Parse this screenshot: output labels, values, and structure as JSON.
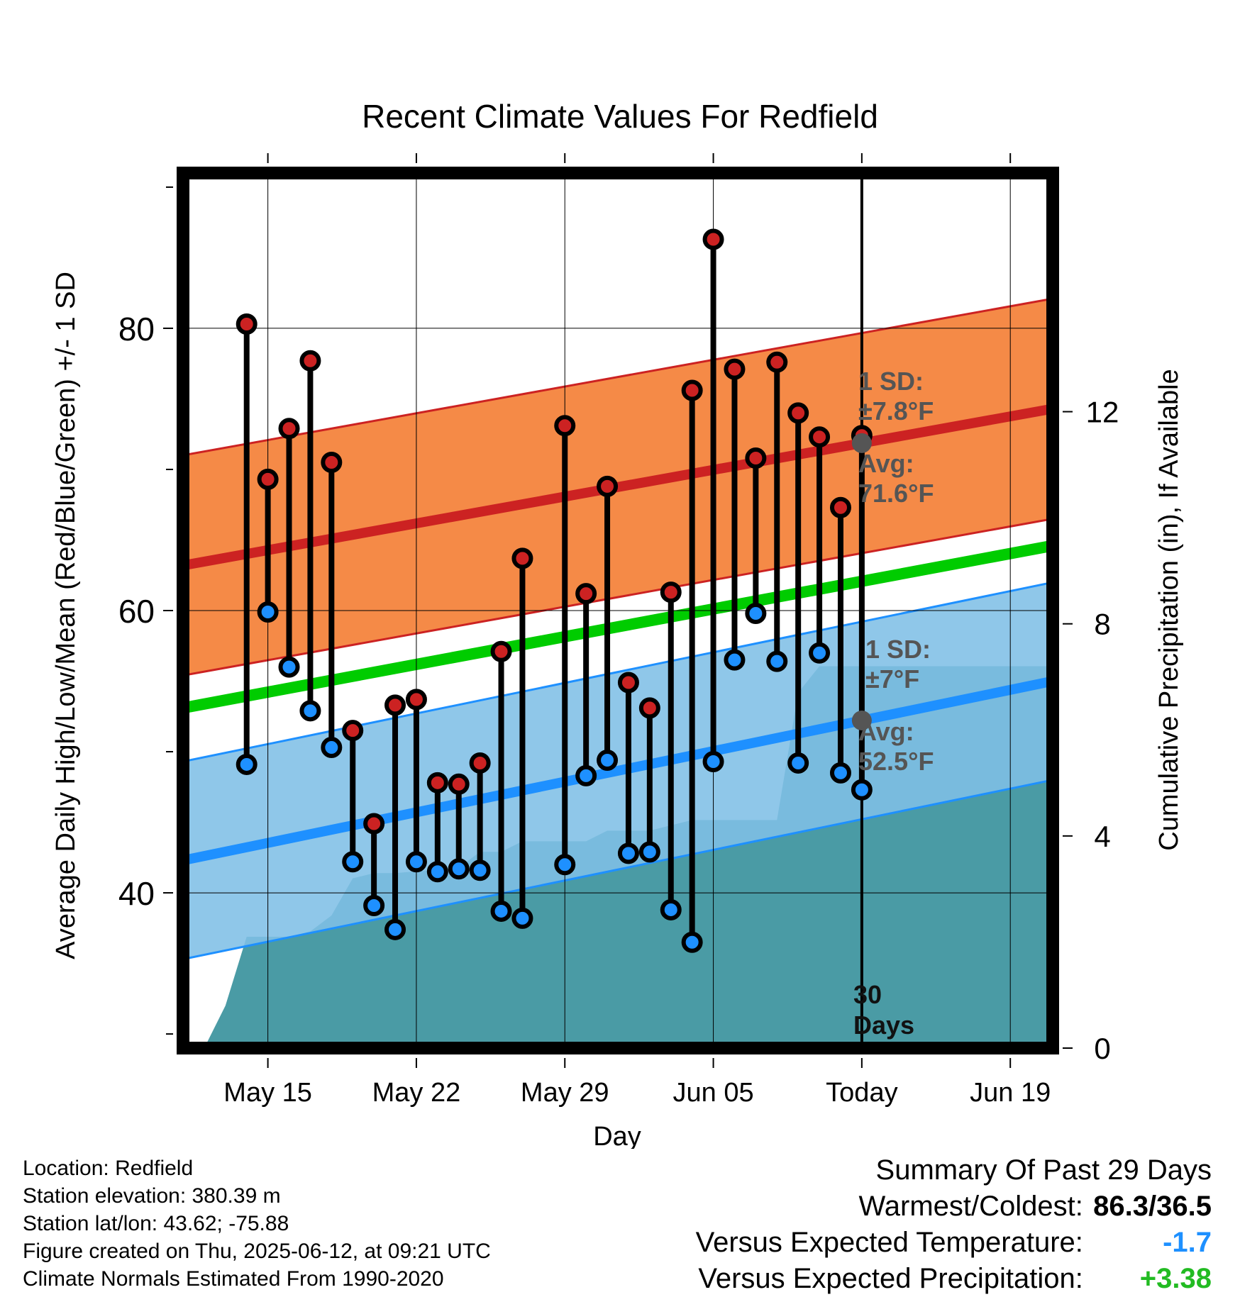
{
  "chart_data": {
    "type": "line",
    "title": "Recent Climate Values For Redfield",
    "xlabel": "Day",
    "ylabel_left": "Average Daily High/Low/Mean (Red/Blue/Green) +/- 1 SD",
    "ylabel_right": "Cumulative Precipitation (in), If Available",
    "ylim_left": [
      29,
      91
    ],
    "ylim_right": [
      0,
      16.5
    ],
    "left_ticks": [
      "80",
      "60",
      "40"
    ],
    "right_ticks": [
      "12",
      "8",
      "4",
      "0"
    ],
    "x_tick_labels": [
      "May 15",
      "May 22",
      "May 29",
      "Jun 05",
      "Today",
      "Jun 19"
    ],
    "x_range_days": [
      "2025-05-11T12:00",
      "2025-06-21T12:00"
    ],
    "grid": true,
    "today": "2025-06-12",
    "daily_high": [
      [
        "2025-05-14",
        80.3
      ],
      [
        "2025-05-15",
        69.3
      ],
      [
        "2025-05-16",
        72.9
      ],
      [
        "2025-05-17",
        77.7
      ],
      [
        "2025-05-18",
        70.5
      ],
      [
        "2025-05-19",
        51.5
      ],
      [
        "2025-05-20",
        44.9
      ],
      [
        "2025-05-21",
        53.3
      ],
      [
        "2025-05-22",
        53.7
      ],
      [
        "2025-05-23",
        47.8
      ],
      [
        "2025-05-24",
        47.7
      ],
      [
        "2025-05-25",
        49.2
      ],
      [
        "2025-05-26",
        57.1
      ],
      [
        "2025-05-27",
        63.7
      ],
      [
        "2025-05-29",
        73.1
      ],
      [
        "2025-05-30",
        61.2
      ],
      [
        "2025-05-31",
        68.8
      ],
      [
        "2025-06-01",
        54.9
      ],
      [
        "2025-06-02",
        53.1
      ],
      [
        "2025-06-03",
        61.3
      ],
      [
        "2025-06-04",
        75.6
      ],
      [
        "2025-06-05",
        86.3
      ],
      [
        "2025-06-06",
        77.1
      ],
      [
        "2025-06-07",
        70.8
      ],
      [
        "2025-06-08",
        77.6
      ],
      [
        "2025-06-09",
        74.0
      ],
      [
        "2025-06-10",
        72.3
      ],
      [
        "2025-06-11",
        67.3
      ],
      [
        "2025-06-12",
        72.4
      ]
    ],
    "daily_low": [
      [
        "2025-05-14",
        49.1
      ],
      [
        "2025-05-15",
        59.9
      ],
      [
        "2025-05-16",
        56.0
      ],
      [
        "2025-05-17",
        52.9
      ],
      [
        "2025-05-18",
        50.3
      ],
      [
        "2025-05-19",
        42.2
      ],
      [
        "2025-05-20",
        39.1
      ],
      [
        "2025-05-21",
        37.4
      ],
      [
        "2025-05-22",
        42.2
      ],
      [
        "2025-05-23",
        41.5
      ],
      [
        "2025-05-24",
        41.7
      ],
      [
        "2025-05-25",
        41.6
      ],
      [
        "2025-05-26",
        38.7
      ],
      [
        "2025-05-27",
        38.2
      ],
      [
        "2025-05-29",
        42.0
      ],
      [
        "2025-05-30",
        48.3
      ],
      [
        "2025-05-31",
        49.4
      ],
      [
        "2025-06-01",
        42.8
      ],
      [
        "2025-06-02",
        42.9
      ],
      [
        "2025-06-03",
        38.8
      ],
      [
        "2025-06-04",
        36.5
      ],
      [
        "2025-06-05",
        49.3
      ],
      [
        "2025-06-06",
        56.5
      ],
      [
        "2025-06-07",
        59.8
      ],
      [
        "2025-06-08",
        56.4
      ],
      [
        "2025-06-09",
        49.2
      ],
      [
        "2025-06-10",
        57.0
      ],
      [
        "2025-06-11",
        48.5
      ],
      [
        "2025-06-12",
        47.3
      ]
    ],
    "normal_high": {
      "start": [
        "2025-05-11T12:00",
        63.2
      ],
      "end": [
        "2025-06-21T12:00",
        74.3
      ],
      "sd_label": "1 SD:",
      "sd_value": "±7.8°F",
      "avg_label": "Avg:",
      "avg_value": "71.6°F",
      "color": "#cc2222",
      "band_color": "#f47a2e"
    },
    "normal_low": {
      "start": [
        "2025-05-11T12:00",
        42.3
      ],
      "end": [
        "2025-06-21T12:00",
        55.0
      ],
      "sd_label": "1 SD:",
      "sd_value": "±7°F",
      "avg_label": "Avg:",
      "avg_value": "52.5°F",
      "color": "#1e90ff",
      "band_color": "#80bfe6"
    },
    "normal_mean": {
      "start": [
        "2025-05-11T12:00",
        53.1
      ],
      "end": [
        "2025-06-21T12:00",
        64.6
      ],
      "color": "#00cc00"
    },
    "cumulative_precip": [
      [
        "2025-05-12T12:00",
        0.0
      ],
      [
        "2025-05-13T12:00",
        0.8
      ],
      [
        "2025-05-14T12:00",
        2.1
      ],
      [
        "2025-05-16T12:00",
        2.1
      ],
      [
        "2025-05-17T12:00",
        2.2
      ],
      [
        "2025-05-18T12:00",
        2.5
      ],
      [
        "2025-05-19T12:00",
        3.2
      ],
      [
        "2025-05-20T12:00",
        3.3
      ],
      [
        "2025-05-21T12:00",
        3.3
      ],
      [
        "2025-05-24T12:00",
        3.4
      ],
      [
        "2025-05-25T12:00",
        3.7
      ],
      [
        "2025-05-26T12:00",
        3.7
      ],
      [
        "2025-05-27T12:00",
        3.9
      ],
      [
        "2025-05-30T12:00",
        3.9
      ],
      [
        "2025-05-31T12:00",
        4.1
      ],
      [
        "2025-06-02T12:00",
        4.1
      ],
      [
        "2025-06-03T12:00",
        4.2
      ],
      [
        "2025-06-04T12:00",
        4.3
      ],
      [
        "2025-06-05T12:00",
        4.3
      ],
      [
        "2025-06-06T12:00",
        4.3
      ],
      [
        "2025-06-07T12:00",
        4.3
      ],
      [
        "2025-06-08T12:00",
        4.3
      ],
      [
        "2025-06-09T12:00",
        6.7
      ],
      [
        "2025-06-10T12:00",
        7.2
      ],
      [
        "2025-06-12T12:00",
        7.2
      ],
      [
        "2025-06-21T12:00",
        7.2
      ]
    ],
    "precip_color": "#4a9ba5",
    "today_label": [
      "30",
      "Days"
    ]
  },
  "footer": {
    "location": "Location: Redfield",
    "elevation": "Station elevation: 380.39 m",
    "latlon": "Station lat/lon: 43.62; -75.88",
    "created": "Figure created on Thu, 2025-06-12, at 09:21 UTC",
    "normals": "Climate Normals Estimated From 1990-2020"
  },
  "summary": {
    "title": "Summary Of Past 29 Days",
    "warm_cold_label": "Warmest/Coldest:",
    "warm_cold_value": "86.3/36.5",
    "temp_label": "Versus Expected Temperature:",
    "temp_value": "-1.7",
    "temp_color": "#1e90ff",
    "precip_label": "Versus Expected Precipitation:",
    "precip_value": "+3.38",
    "precip_color": "#22bb22"
  }
}
